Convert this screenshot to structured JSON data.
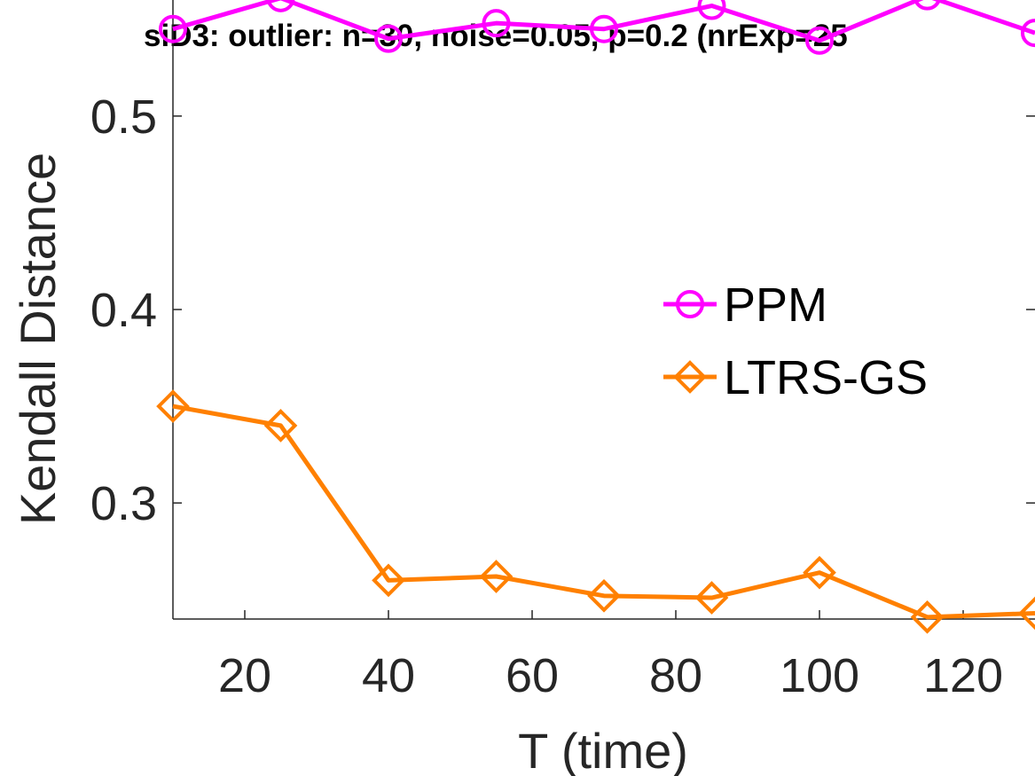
{
  "chart_data": {
    "type": "line",
    "title": "siD3: outlier: n=30, noise=0.05, p=0.2 (nrExp=25",
    "xlabel": "T (time)",
    "ylabel": "Kendall Distance",
    "xlim": [
      10,
      130
    ],
    "ylim": [
      0.24,
      0.56
    ],
    "xticks": [
      20,
      40,
      60,
      80,
      100,
      120
    ],
    "xtick_labels": [
      "20",
      "40",
      "60",
      "80",
      "100",
      "120"
    ],
    "yticks": [
      0.3,
      0.4,
      0.5
    ],
    "ytick_labels": [
      "0.3",
      "0.4",
      "0.5"
    ],
    "grid": false,
    "legend_position": "center-right",
    "x": [
      10,
      25,
      40,
      55,
      70,
      85,
      100,
      115,
      130
    ],
    "series": [
      {
        "name": "PPM",
        "marker": "circle",
        "color": "#ff00ff",
        "values": [
          0.545,
          0.561,
          0.54,
          0.548,
          0.545,
          0.557,
          0.539,
          0.562,
          0.543
        ]
      },
      {
        "name": "LTRS-GS",
        "marker": "diamond",
        "color": "#ff8000",
        "values": [
          0.35,
          0.34,
          0.26,
          0.262,
          0.252,
          0.251,
          0.264,
          0.241,
          0.243
        ]
      }
    ]
  }
}
